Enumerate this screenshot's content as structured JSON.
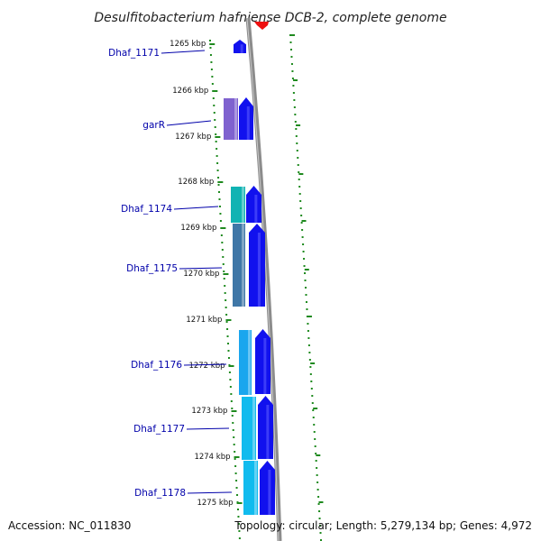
{
  "title": "Desulfitobacterium hafniense DCB-2, complete genome",
  "footer": {
    "accession": "Accession: NC_011830",
    "summary": "Topology: circular; Length: 5,279,134 bp; Genes: 4,972"
  },
  "colors": {
    "backbone": "#8c8c8c",
    "tick": "#1f8a1f",
    "gene_label": "#0000aa",
    "feature_red": "#ee1111",
    "cds_blue": "#1111ee",
    "shade_purple": "#7f62cf",
    "shade_teal": "#11b3b3",
    "shade_steel": "#3f77a7",
    "shade_cyan": "#1aa6ee",
    "shade_sky": "#11bbee"
  },
  "kbp_ticks": [
    "1265 kbp",
    "1266 kbp",
    "1267 kbp",
    "1268 kbp",
    "1269 kbp",
    "1270 kbp",
    "1271 kbp",
    "1272 kbp",
    "1273 kbp",
    "1274 kbp",
    "1275 kbp"
  ],
  "genes": [
    {
      "label": "Dhaf_1171"
    },
    {
      "label": "garR"
    },
    {
      "label": "Dhaf_1174"
    },
    {
      "label": "Dhaf_1175"
    },
    {
      "label": "Dhaf_1176"
    },
    {
      "label": "Dhaf_1177"
    },
    {
      "label": "Dhaf_1178"
    }
  ]
}
